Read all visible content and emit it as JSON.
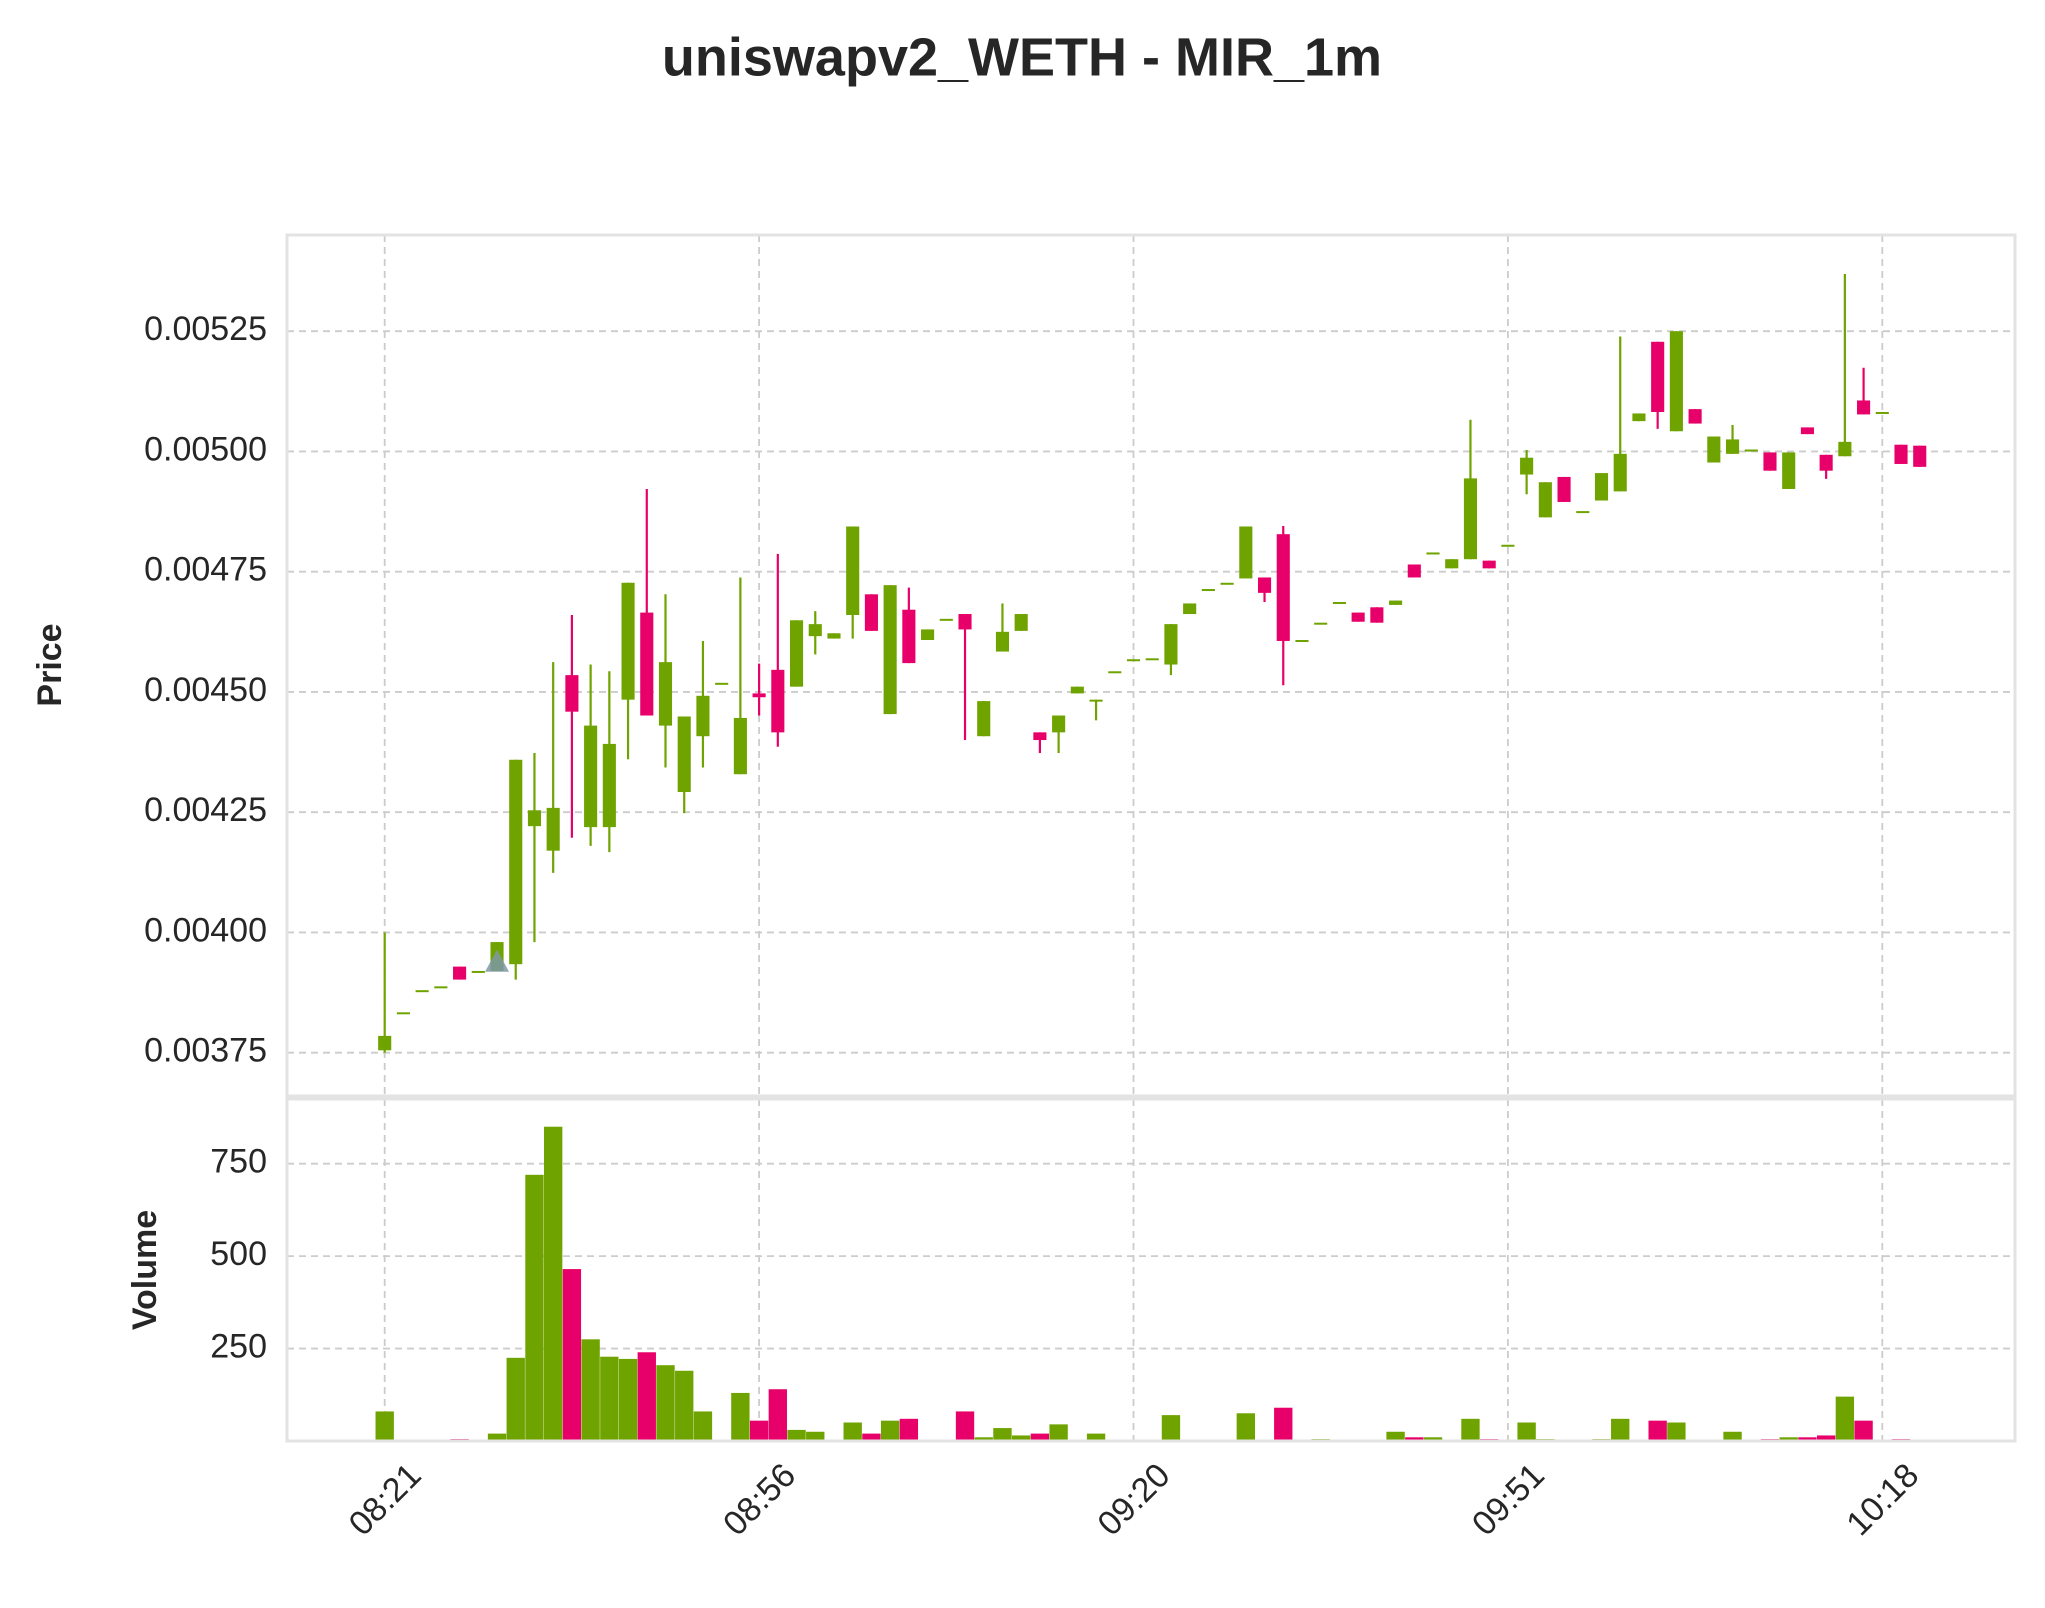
{
  "chart_data": {
    "type": "candlestick",
    "title": "uniswapv2_WETH - MIR_1m",
    "ylabel": "Price",
    "volume_ylabel": "Volume",
    "categories": [
      "08:21",
      null,
      null,
      null,
      null,
      null,
      null,
      null,
      null,
      null,
      null,
      null,
      null,
      null,
      null,
      null,
      null,
      null,
      null,
      null,
      "08:56",
      null,
      null,
      null,
      null,
      null,
      null,
      null,
      null,
      null,
      null,
      null,
      null,
      null,
      null,
      null,
      null,
      null,
      null,
      null,
      "09:20",
      null,
      null,
      null,
      null,
      null,
      null,
      null,
      null,
      null,
      null,
      null,
      null,
      null,
      null,
      null,
      null,
      null,
      null,
      null,
      "09:51",
      null,
      null,
      null,
      null,
      null,
      null,
      null,
      null,
      null,
      null,
      null,
      null,
      null,
      null,
      null,
      null,
      null,
      null,
      null,
      "10:18",
      null,
      null
    ],
    "open": [
      0.003755,
      0.003834,
      0.00388,
      0.003888,
      0.003929,
      0.00392,
      0.00392,
      0.003934,
      0.004221,
      0.00417,
      0.004535,
      0.004219,
      0.004219,
      0.004484,
      0.004665,
      0.00443,
      0.004292,
      0.004408,
      0.004519,
      0.004329,
      0.004497,
      0.004546,
      0.004511,
      0.004616,
      0.004611,
      0.00466,
      0.004703,
      0.004454,
      0.004671,
      0.004608,
      0.004652,
      0.004662,
      0.004408,
      0.004584,
      0.004627,
      0.004416,
      0.004416,
      0.004497,
      0.004484,
      0.004543,
      0.004568,
      0.00457,
      0.004557,
      0.004662,
      0.004714,
      0.004727,
      0.004736,
      0.004738,
      0.004828,
      0.004608,
      0.004644,
      0.004687,
      0.004665,
      0.004676,
      0.004681,
      0.004765,
      0.00479,
      0.004757,
      0.004776,
      0.004773,
      0.004806,
      0.004952,
      0.004863,
      0.004947,
      0.004876,
      0.004898,
      0.004917,
      0.005063,
      0.005228,
      0.005042,
      0.005088,
      0.004977,
      0.004995,
      0.005004,
      0.004998,
      0.004922,
      0.00505,
      0.004993,
      0.00499,
      0.005106,
      0.005082,
      0.005014,
      0.005012
    ],
    "high": [
      0.004,
      0.003834,
      0.00388,
      0.003888,
      0.003929,
      0.00392,
      0.00398,
      0.004359,
      0.004373,
      0.004562,
      0.00466,
      0.004557,
      0.004543,
      0.004727,
      0.004922,
      0.004703,
      0.004449,
      0.004606,
      0.004519,
      0.004738,
      0.004559,
      0.004787,
      0.004649,
      0.004668,
      0.004622,
      0.004844,
      0.004703,
      0.004722,
      0.004717,
      0.00463,
      0.004652,
      0.004662,
      0.004481,
      0.004684,
      0.004662,
      0.004416,
      0.004451,
      0.004511,
      0.004484,
      0.004543,
      0.004568,
      0.00457,
      0.004641,
      0.004684,
      0.004714,
      0.004727,
      0.004844,
      0.004738,
      0.004845,
      0.004608,
      0.004644,
      0.004687,
      0.004665,
      0.004676,
      0.00469,
      0.004765,
      0.00479,
      0.004776,
      0.005066,
      0.004773,
      0.004806,
      0.005003,
      0.004936,
      0.004947,
      0.004876,
      0.004955,
      0.005239,
      0.005079,
      0.005228,
      0.00525,
      0.005088,
      0.005031,
      0.005055,
      0.005004,
      0.004998,
      0.004998,
      0.00505,
      0.004993,
      0.005369,
      0.005174,
      0.005082,
      0.005014,
      0.005012
    ],
    "low": [
      0.00375,
      0.003834,
      0.00388,
      0.003888,
      0.003902,
      0.00392,
      0.00392,
      0.003902,
      0.00398,
      0.004124,
      0.004197,
      0.00418,
      0.004167,
      0.00436,
      0.004451,
      0.004343,
      0.004248,
      0.004343,
      0.004519,
      0.004329,
      0.004451,
      0.004386,
      0.004511,
      0.004578,
      0.004611,
      0.004611,
      0.004627,
      0.004454,
      0.00456,
      0.004608,
      0.004652,
      0.0044,
      0.004408,
      0.004584,
      0.004627,
      0.004373,
      0.004373,
      0.004497,
      0.004441,
      0.004543,
      0.004568,
      0.00457,
      0.004535,
      0.004662,
      0.004714,
      0.004727,
      0.004736,
      0.004687,
      0.004514,
      0.004608,
      0.004644,
      0.004687,
      0.004646,
      0.004644,
      0.004681,
      0.004738,
      0.00479,
      0.004757,
      0.004776,
      0.004757,
      0.004806,
      0.004911,
      0.004863,
      0.004895,
      0.004876,
      0.004898,
      0.004917,
      0.005063,
      0.005047,
      0.005042,
      0.005058,
      0.004977,
      0.004995,
      0.005004,
      0.00496,
      0.004922,
      0.005036,
      0.004943,
      0.00499,
      0.005077,
      0.005082,
      0.004974,
      0.004968
    ],
    "close": [
      0.003785,
      0.003834,
      0.00388,
      0.003888,
      0.003902,
      0.00392,
      0.00398,
      0.004359,
      0.004254,
      0.004259,
      0.004459,
      0.00443,
      0.004392,
      0.004727,
      0.004451,
      0.004562,
      0.004449,
      0.004492,
      0.004519,
      0.004446,
      0.004489,
      0.004416,
      0.004649,
      0.004641,
      0.004622,
      0.004844,
      0.004627,
      0.004722,
      0.00456,
      0.00463,
      0.004652,
      0.00463,
      0.004481,
      0.004625,
      0.004662,
      0.0044,
      0.004451,
      0.004511,
      0.004484,
      0.004543,
      0.004568,
      0.00457,
      0.004641,
      0.004684,
      0.004714,
      0.004727,
      0.004844,
      0.004706,
      0.004606,
      0.004608,
      0.004644,
      0.004687,
      0.004646,
      0.004644,
      0.00469,
      0.004738,
      0.00479,
      0.004776,
      0.004944,
      0.004757,
      0.004806,
      0.004987,
      0.004936,
      0.004895,
      0.004876,
      0.004955,
      0.004995,
      0.005079,
      0.005082,
      0.00525,
      0.005058,
      0.005031,
      0.005025,
      0.005004,
      0.00496,
      0.004998,
      0.005036,
      0.00496,
      0.00502,
      0.005077,
      0.005082,
      0.004974,
      0.004968
    ],
    "volume": [
      80,
      3,
      0,
      0,
      5,
      0,
      20,
      225,
      720,
      850,
      465,
      275,
      228,
      222,
      240,
      205,
      190,
      80,
      0,
      130,
      55,
      140,
      30,
      25,
      3,
      50,
      20,
      55,
      60,
      0,
      0,
      80,
      10,
      35,
      15,
      20,
      45,
      0,
      20,
      0,
      0,
      0,
      70,
      0,
      0,
      0,
      75,
      0,
      90,
      0,
      5,
      0,
      0,
      0,
      25,
      10,
      10,
      0,
      60,
      5,
      0,
      50,
      5,
      0,
      0,
      5,
      60,
      0,
      55,
      50,
      0,
      0,
      25,
      0,
      5,
      10,
      10,
      15,
      120,
      55,
      0,
      5,
      0
    ],
    "up_color": "#6fa300",
    "down_color": "#e8006a",
    "signal": {
      "index": 6,
      "value": 0.003939,
      "color": "#7f98a6"
    },
    "ylim": [
      0.00366,
      0.00545
    ],
    "yticks": [
      0.00375,
      {
        "value": 0.004,
        "label": "0.00400"
      },
      0.00425,
      {
        "value": 0.0045,
        "label": "0.00450"
      },
      0.00475,
      {
        "value": 0.005,
        "label": "0.00500"
      },
      0.00525
    ],
    "volume_ylim": [
      0,
      925
    ],
    "volume_yticks": [
      250,
      500,
      750
    ],
    "grid": true
  }
}
